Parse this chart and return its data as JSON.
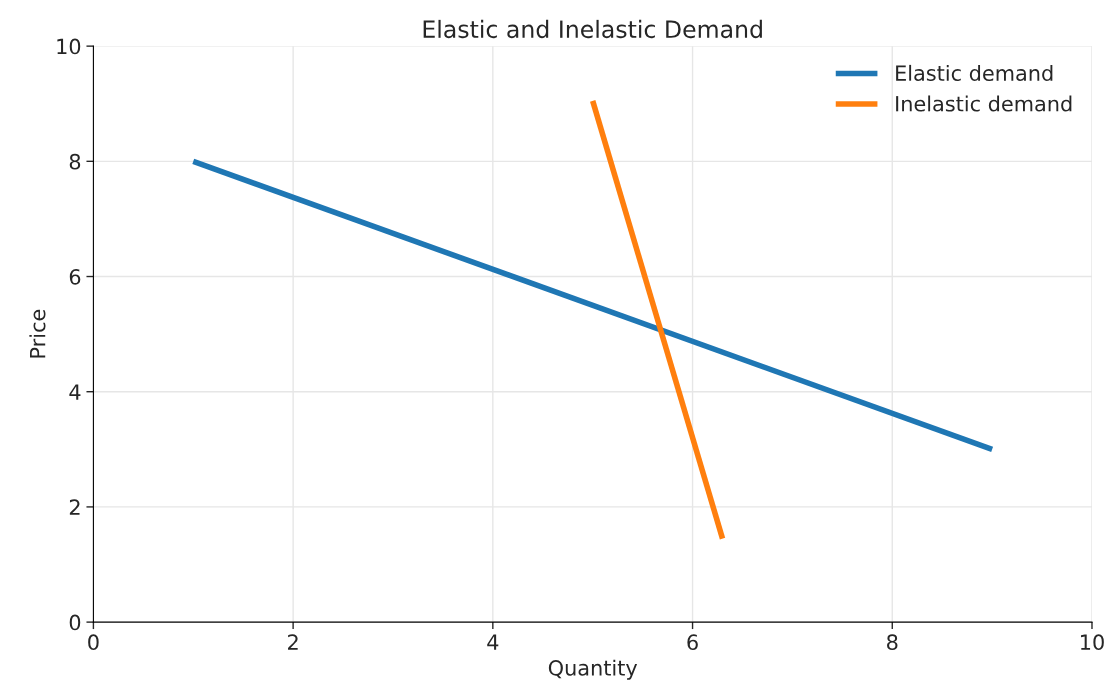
{
  "chart_data": {
    "type": "line",
    "title": "Elastic and Inelastic Demand",
    "xlabel": "Quantity",
    "ylabel": "Price",
    "series": [
      {
        "name": "Elastic demand",
        "color": "#1f77b4",
        "x": [
          1,
          9
        ],
        "values": [
          8,
          3
        ]
      },
      {
        "name": "Inelastic demand",
        "color": "#ff7f0e",
        "x": [
          5,
          6.3
        ],
        "values": [
          9.05,
          1.45
        ]
      }
    ],
    "xlim": [
      0,
      10
    ],
    "ylim": [
      0,
      10
    ],
    "xticks": [
      0,
      2,
      4,
      6,
      8,
      10
    ],
    "yticks": [
      0,
      2,
      4,
      6,
      8,
      10
    ],
    "grid": true,
    "legend": "top right",
    "marker": "none",
    "line_style": "solid"
  }
}
